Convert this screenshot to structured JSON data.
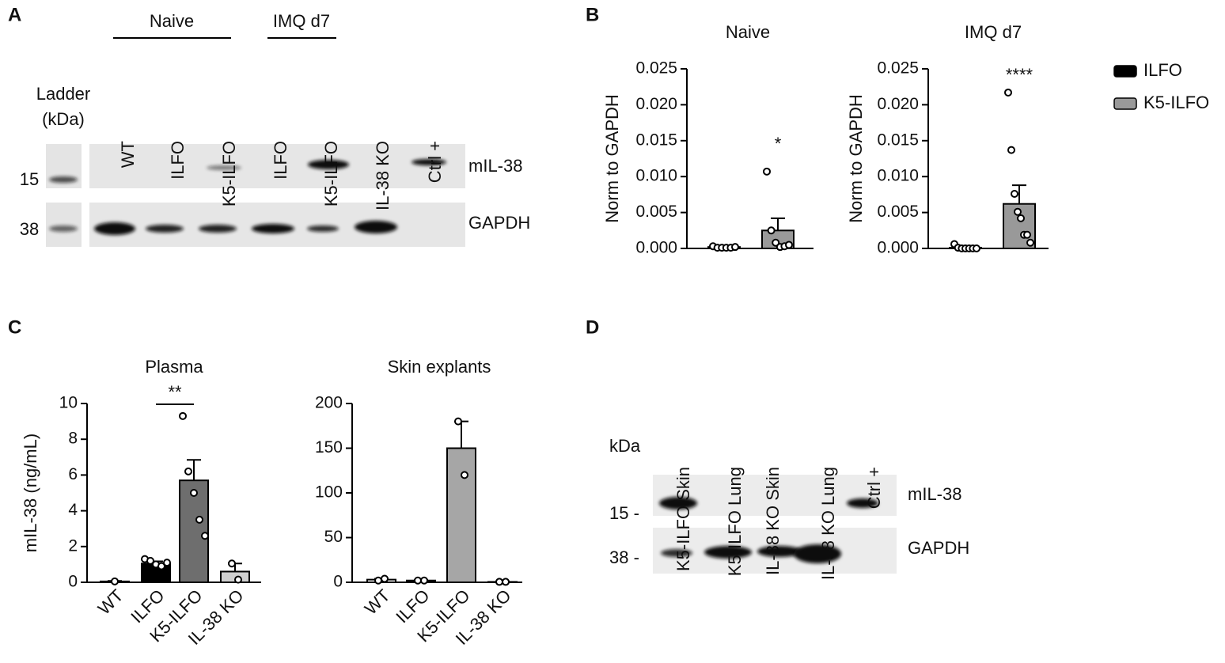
{
  "panels": [
    "A",
    "B",
    "C",
    "D"
  ],
  "blot_a": {
    "groups": [
      "Naive",
      "IMQ d7"
    ],
    "ladder_label": [
      "Ladder",
      "(kDa)"
    ],
    "lanes": [
      "WT",
      "ILFO",
      "K5-ILFO",
      "ILFO",
      "K5-ILFO",
      "IL-38 KO",
      "Ctrl +"
    ],
    "markers": [
      "15",
      "38"
    ],
    "bands": [
      "mIL-38",
      "GAPDH"
    ]
  },
  "blot_d": {
    "unit": "kDa",
    "lanes": [
      "K5-ILFO Skin",
      "K5-ILFO Lung",
      "IL-38 KO Skin",
      "IL-38 KO Lung",
      "Ctrl +"
    ],
    "markers": [
      "15 -",
      "38 -"
    ],
    "bands": [
      "mIL-38",
      "GAPDH"
    ]
  },
  "legend": [
    {
      "name": "ILFO",
      "color": "#000000"
    },
    {
      "name": "K5-ILFO",
      "color": "#999999"
    }
  ],
  "chart_data": [
    {
      "type": "bar",
      "title": "Naive",
      "ylabel": "Norm to GAPDH",
      "categories": [
        null,
        null
      ],
      "values": [
        0.0002,
        0.0025
      ],
      "errors": [
        0.0001,
        0.0017
      ],
      "points": [
        [
          0.0003,
          0.0001,
          0.0001,
          0.0001,
          0.0001,
          0.0002
        ],
        [
          0.0107,
          0.0025,
          0.0008,
          0.0002,
          0.0003,
          0.0005
        ]
      ],
      "colors": [
        "#000000",
        "#999999"
      ],
      "annotations": [
        "*"
      ],
      "ylim": [
        0,
        0.025
      ],
      "yticks": [
        {
          "value": 0,
          "label": "0.000"
        },
        {
          "value": 0.005,
          "label": "0.005"
        },
        {
          "value": 0.01,
          "label": "0.010"
        },
        {
          "value": 0.015,
          "label": "0.015"
        },
        {
          "value": 0.02,
          "label": "0.020"
        },
        {
          "value": 0.025,
          "label": "0.025"
        }
      ]
    },
    {
      "type": "bar",
      "title": "IMQ d7",
      "ylabel": "Norm to GAPDH",
      "categories": [
        null,
        null
      ],
      "values": [
        0.0001,
        0.0062
      ],
      "errors": [
        0.0001,
        0.0026
      ],
      "points": [
        [
          0.0006,
          0.0001,
          0,
          0,
          0,
          0,
          0
        ],
        [
          0.0217,
          0.0137,
          0.0076,
          0.0051,
          0.0042,
          0.0019,
          0.0019,
          0.0008
        ]
      ],
      "colors": [
        "#000000",
        "#999999"
      ],
      "annotations": [
        "****"
      ],
      "ylim": [
        0,
        0.025
      ],
      "yticks": [
        {
          "value": 0,
          "label": "0.000"
        },
        {
          "value": 0.005,
          "label": "0.005"
        },
        {
          "value": 0.01,
          "label": "0.010"
        },
        {
          "value": 0.015,
          "label": "0.015"
        },
        {
          "value": 0.02,
          "label": "0.020"
        },
        {
          "value": 0.025,
          "label": "0.025"
        }
      ]
    },
    {
      "type": "bar",
      "title": "Plasma",
      "ylabel": "mIL-38 (ng/mL)",
      "categories": [
        "WT",
        "ILFO",
        "K5-ILFO",
        "IL-38 KO"
      ],
      "values": [
        0.05,
        1.05,
        5.7,
        0.6
      ],
      "errors": [
        0.03,
        0.12,
        1.15,
        0.45
      ],
      "points": [
        [
          0.05
        ],
        [
          1.3,
          1.2,
          1.0,
          0.9,
          1.1
        ],
        [
          9.3,
          6.2,
          5.0,
          3.5,
          2.6
        ],
        [
          1.05,
          0.15
        ]
      ],
      "colors": [
        "#ffffff",
        "#000000",
        "#6e6e6e",
        "#d0d0d0"
      ],
      "annotations": [
        "**"
      ],
      "ylim": [
        0,
        10
      ],
      "yticks": [
        0,
        2,
        4,
        6,
        8,
        10
      ]
    },
    {
      "type": "bar",
      "title": "Skin explants",
      "categories": [
        "WT",
        "ILFO",
        "K5-ILFO",
        "IL-38 KO"
      ],
      "values": [
        3,
        2,
        150,
        0.5
      ],
      "errors": [
        1,
        0.5,
        30,
        0.3
      ],
      "points": [
        [
          2,
          4
        ],
        [
          2,
          2
        ],
        [
          180,
          120
        ],
        [
          0.5,
          0.5
        ]
      ],
      "colors": [
        "#ffffff",
        "#000000",
        "#a6a6a6",
        "#d0d0d0"
      ],
      "ylim": [
        0,
        200
      ],
      "yticks": [
        0,
        50,
        100,
        150,
        200
      ]
    }
  ]
}
